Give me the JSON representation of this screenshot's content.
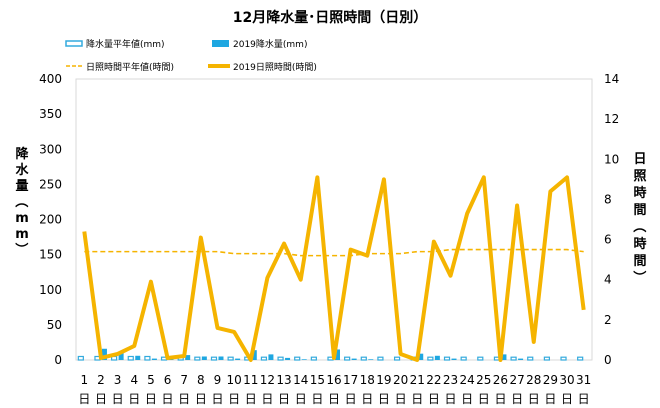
{
  "chart_data": {
    "type": "bar+line",
    "title": "12月降水量･日照時間（日別）",
    "categories": [
      "1",
      "2",
      "3",
      "4",
      "5",
      "6",
      "7",
      "8",
      "9",
      "10",
      "11",
      "12",
      "13",
      "14",
      "15",
      "16",
      "17",
      "18",
      "19",
      "20",
      "21",
      "22",
      "23",
      "24",
      "25",
      "26",
      "27",
      "28",
      "29",
      "30",
      "31"
    ],
    "day_suffix": "日",
    "left_axis": {
      "label": "降水量（mm）",
      "ylim": [
        0,
        400
      ],
      "ticks": [
        0,
        50,
        100,
        150,
        200,
        250,
        300,
        350,
        400
      ]
    },
    "right_axis": {
      "label": "日照時間（時間）",
      "ylim": [
        0,
        14
      ],
      "ticks": [
        0,
        2,
        4,
        6,
        8,
        10,
        12,
        14
      ]
    },
    "series": [
      {
        "name": "降水量平年値(mm)",
        "type": "bar",
        "axis": "left",
        "style": "hollow",
        "color": "#33aadd",
        "values": [
          5,
          5,
          5,
          5,
          5,
          4,
          4,
          4,
          4,
          4,
          4,
          4,
          4,
          4,
          4,
          4,
          4,
          4,
          4,
          4,
          4,
          4,
          4,
          4,
          4,
          4,
          4,
          4,
          4,
          4,
          4
        ]
      },
      {
        "name": "2019降水量(mm)",
        "type": "bar",
        "axis": "left",
        "style": "solid",
        "color": "#1ea7e1",
        "values": [
          0,
          16,
          12,
          6,
          2,
          1,
          7,
          5,
          5,
          2,
          14,
          8,
          3,
          1,
          0,
          15,
          2,
          1,
          0,
          0,
          9,
          6,
          2,
          0,
          0,
          8,
          2,
          0,
          0,
          0,
          0
        ]
      },
      {
        "name": "日照時間平年値(時間)",
        "type": "line",
        "axis": "right",
        "style": "dashed",
        "color": "#f5b400",
        "values": [
          5.4,
          5.4,
          5.4,
          5.4,
          5.4,
          5.4,
          5.4,
          5.4,
          5.4,
          5.3,
          5.3,
          5.3,
          5.3,
          5.2,
          5.2,
          5.2,
          5.2,
          5.3,
          5.3,
          5.3,
          5.4,
          5.4,
          5.5,
          5.5,
          5.5,
          5.5,
          5.5,
          5.5,
          5.5,
          5.5,
          5.4
        ]
      },
      {
        "name": "2019日照時間(時間)",
        "type": "line",
        "axis": "right",
        "style": "solid",
        "color": "#f5b400",
        "values": [
          6.4,
          0.1,
          0.3,
          0.7,
          3.9,
          0.1,
          0.2,
          6.1,
          1.6,
          1.4,
          0.0,
          4.1,
          5.8,
          4.0,
          9.1,
          0.1,
          5.5,
          5.2,
          9.0,
          0.3,
          0.0,
          5.9,
          4.2,
          7.3,
          9.1,
          0.0,
          7.7,
          0.9,
          8.4,
          9.1,
          2.5
        ]
      }
    ],
    "legend_position": "top",
    "grid": false
  }
}
